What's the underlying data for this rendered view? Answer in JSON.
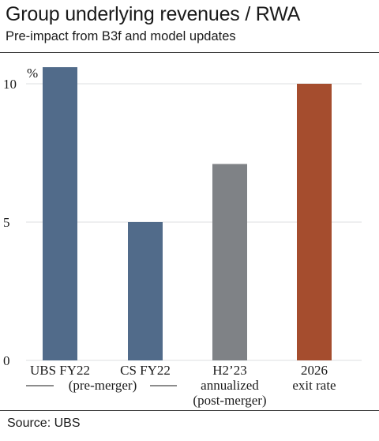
{
  "title": "Group underlying revenues / RWA",
  "subtitle": "Pre-impact from B3f and model updates",
  "source": "Source: UBS",
  "colors": {
    "ubs_blue": "#516b8a",
    "grey": "#7f8286",
    "rust": "#a54d2e",
    "gridline": "#e9eaec"
  },
  "chart_data": {
    "type": "bar",
    "unit_label": "%",
    "categories": [
      {
        "lines": [
          "UBS FY22"
        ]
      },
      {
        "lines": [
          "CS FY22"
        ]
      },
      {
        "lines": [
          "H2’23",
          "annualized",
          "(post-merger)"
        ]
      },
      {
        "lines": [
          "2026",
          "exit rate"
        ]
      }
    ],
    "values": [
      10.6,
      5.0,
      7.1,
      10.0
    ],
    "bar_colors": [
      "#516b8a",
      "#516b8a",
      "#7f8286",
      "#a54d2e"
    ],
    "group_label": "(pre-merger)",
    "ylim": [
      0,
      10
    ],
    "yticks": [
      0,
      5,
      10
    ],
    "grid": true
  }
}
